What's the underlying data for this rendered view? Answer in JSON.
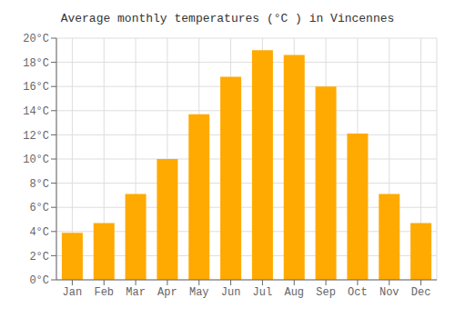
{
  "chart_data": {
    "type": "bar",
    "title": "Average monthly temperatures (°C ) in Vincennes",
    "categories": [
      "Jan",
      "Feb",
      "Mar",
      "Apr",
      "May",
      "Jun",
      "Jul",
      "Aug",
      "Sep",
      "Oct",
      "Nov",
      "Dec"
    ],
    "values": [
      3.9,
      4.7,
      7.1,
      10.0,
      13.7,
      16.8,
      19.0,
      18.6,
      16.0,
      12.1,
      7.1,
      4.7
    ],
    "color": "#FFAA00",
    "ylim": [
      0,
      20
    ],
    "yticks": [
      {
        "value": 0,
        "label": "0°C"
      },
      {
        "value": 2,
        "label": "2°C"
      },
      {
        "value": 4,
        "label": "4°C"
      },
      {
        "value": 6,
        "label": "6°C"
      },
      {
        "value": 8,
        "label": "8°C"
      },
      {
        "value": 10,
        "label": "10°C"
      },
      {
        "value": 12,
        "label": "12°C"
      },
      {
        "value": 14,
        "label": "14°C"
      },
      {
        "value": 16,
        "label": "16°C"
      },
      {
        "value": 18,
        "label": "18°C"
      },
      {
        "value": 20,
        "label": "20°C"
      }
    ],
    "grid": true
  }
}
